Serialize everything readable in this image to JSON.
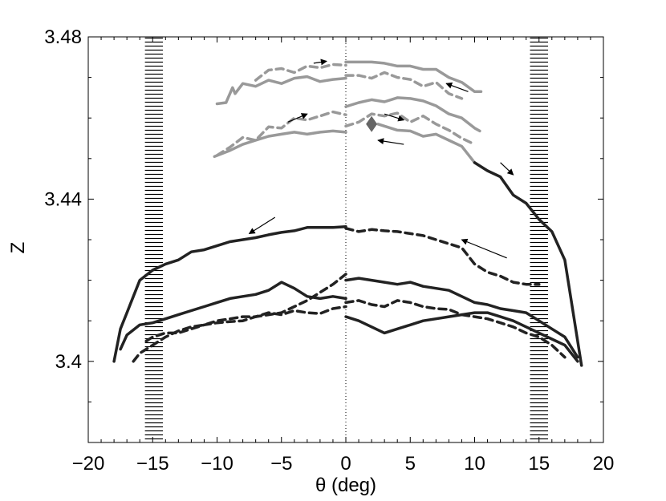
{
  "chart_data": {
    "type": "line",
    "title": "",
    "xlabel": "θ (deg)",
    "ylabel": "Z",
    "xlim": [
      -20,
      20
    ],
    "ylim": [
      3.38,
      3.48
    ],
    "xticks": [
      -20,
      -15,
      -10,
      -5,
      0,
      5,
      10,
      15,
      20
    ],
    "xtick_labels": [
      "−20",
      "−15",
      "−10",
      "−5",
      "0",
      "5",
      "10",
      "15",
      "20"
    ],
    "yticks": [
      3.4,
      3.44,
      3.48
    ],
    "ytick_labels": [
      "3.4",
      "3.44",
      "3.48"
    ],
    "grid": false,
    "legend": "none",
    "colors": {
      "black_series": "#222222",
      "gray_series": "#999999",
      "marker": "#666666",
      "hatch": "#000000"
    },
    "hatched_bands": [
      {
        "x": [
          -15.6,
          -14.2
        ]
      },
      {
        "x": [
          14.3,
          15.7
        ]
      }
    ],
    "center_line": {
      "x": 0,
      "style": "dotted"
    },
    "marker": {
      "shape": "diamond",
      "x": 2.0,
      "y": 3.4585
    },
    "series": [
      {
        "color": "gray",
        "style": "solid",
        "x": [
          -10,
          -9.3,
          -8.8,
          -8.6,
          -8,
          -7,
          -6,
          -5,
          -4,
          -3,
          -2,
          -1,
          0
        ],
        "y": [
          3.4635,
          3.4638,
          3.4675,
          3.466,
          3.4685,
          3.4678,
          3.4693,
          3.4685,
          3.4698,
          3.4702,
          3.469,
          3.4695,
          3.4698
        ]
      },
      {
        "color": "gray",
        "style": "dashed",
        "x": [
          -7,
          -6,
          -5,
          -4,
          -3,
          -2,
          -1,
          0
        ],
        "y": [
          3.4693,
          3.4718,
          3.4722,
          3.4712,
          3.4728,
          3.4724,
          3.4732,
          3.473
        ]
      },
      {
        "color": "gray",
        "style": "solid",
        "x": [
          0,
          1,
          2,
          3,
          4,
          5,
          6,
          7,
          8,
          9,
          10,
          10.5
        ],
        "y": [
          3.4738,
          3.4738,
          3.4738,
          3.4735,
          3.4728,
          3.4728,
          3.472,
          3.472,
          3.47,
          3.4688,
          3.4665,
          3.4665
        ]
      },
      {
        "color": "gray",
        "style": "dashed",
        "x": [
          0,
          1,
          2,
          3,
          4,
          5,
          6,
          7,
          8,
          9
        ],
        "y": [
          3.4705,
          3.4705,
          3.4698,
          3.4712,
          3.47,
          3.4695,
          3.4678,
          3.4688,
          3.466,
          3.4648
        ]
      },
      {
        "color": "gray",
        "style": "solid",
        "x": [
          -10.2,
          -9,
          -8,
          -7,
          -6,
          -5,
          -4,
          -3,
          -2,
          -1,
          0
        ],
        "y": [
          3.4505,
          3.452,
          3.4535,
          3.4545,
          3.4555,
          3.456,
          3.4565,
          3.456,
          3.4565,
          3.4568,
          3.4565
        ]
      },
      {
        "color": "gray",
        "style": "dashed",
        "x": [
          -10,
          -9,
          -8,
          -7,
          -6,
          -5,
          -4,
          -3,
          -2,
          -1,
          0
        ],
        "y": [
          3.4508,
          3.4528,
          3.4552,
          3.4545,
          3.4578,
          3.4575,
          3.46,
          3.4595,
          3.4605,
          3.4615,
          3.4608
        ]
      },
      {
        "color": "gray",
        "style": "solid",
        "x": [
          0,
          1,
          2,
          3,
          4,
          5,
          6,
          7,
          8,
          9,
          10,
          10.4
        ],
        "y": [
          3.4628,
          3.4638,
          3.4645,
          3.464,
          3.465,
          3.4648,
          3.4642,
          3.463,
          3.461,
          3.46,
          3.4575,
          3.4568
        ]
      },
      {
        "color": "gray",
        "style": "dashed",
        "x": [
          0,
          1,
          2,
          3,
          4,
          5,
          6,
          7,
          8,
          9,
          10
        ],
        "y": [
          3.458,
          3.459,
          3.461,
          3.4605,
          3.4612,
          3.459,
          3.4605,
          3.4585,
          3.457,
          3.455,
          3.4535
        ]
      },
      {
        "color": "gray",
        "style": "solid",
        "x": [
          2.5,
          4,
          5,
          6,
          7,
          8,
          9,
          10
        ],
        "y": [
          3.4585,
          3.457,
          3.4568,
          3.4555,
          3.456,
          3.4545,
          3.453,
          3.449
        ]
      },
      {
        "color": "black",
        "style": "solid",
        "x": [
          10,
          11,
          12,
          13,
          14,
          15,
          16,
          17,
          17.5,
          18,
          18.3
        ],
        "y": [
          3.449,
          3.447,
          3.4455,
          3.441,
          3.439,
          3.435,
          3.432,
          3.425,
          3.415,
          3.405,
          3.399
        ]
      },
      {
        "color": "black",
        "style": "solid",
        "x": [
          -18,
          -17.5,
          -17,
          -16.5,
          -16,
          -15,
          -14,
          -13,
          -12,
          -11,
          -10,
          -9,
          -8,
          -7,
          -6,
          -5,
          -4,
          -3,
          -2,
          -1,
          0
        ],
        "y": [
          3.4,
          3.408,
          3.412,
          3.416,
          3.42,
          3.4225,
          3.424,
          3.425,
          3.427,
          3.4275,
          3.4285,
          3.4295,
          3.43,
          3.4305,
          3.4312,
          3.4318,
          3.4322,
          3.433,
          3.433,
          3.433,
          3.4332
        ]
      },
      {
        "color": "black",
        "style": "dashed",
        "x": [
          0,
          1,
          2,
          3,
          4,
          5,
          6,
          7,
          8,
          9,
          10,
          11,
          12,
          13,
          14,
          15
        ],
        "y": [
          3.4328,
          3.432,
          3.4325,
          3.4322,
          3.432,
          3.4315,
          3.431,
          3.43,
          3.429,
          3.428,
          3.424,
          3.422,
          3.421,
          3.4195,
          3.419,
          3.419
        ]
      },
      {
        "color": "black",
        "style": "solid",
        "x": [
          -17.5,
          -17,
          -16,
          -15,
          -14,
          -13,
          -12,
          -11,
          -10,
          -9,
          -8,
          -7,
          -6,
          -5,
          -4,
          -3,
          -2,
          -1,
          0
        ],
        "y": [
          3.403,
          3.4065,
          3.409,
          3.4095,
          3.4105,
          3.4115,
          3.4125,
          3.4135,
          3.4145,
          3.4155,
          3.416,
          3.4165,
          3.4175,
          3.4195,
          3.418,
          3.416,
          3.4155,
          3.416,
          3.4155
        ]
      },
      {
        "color": "black",
        "style": "dashed",
        "x": [
          -16.5,
          -16,
          -15,
          -14,
          -13,
          -12,
          -11,
          -10,
          -9,
          -8,
          -7,
          -6,
          -5,
          -4,
          -3,
          -2,
          -1,
          0
        ],
        "y": [
          3.4,
          3.402,
          3.404,
          3.406,
          3.4075,
          3.4085,
          3.409,
          3.41,
          3.4105,
          3.411,
          3.411,
          3.4115,
          3.412,
          3.4135,
          3.415,
          3.417,
          3.419,
          3.4215
        ]
      },
      {
        "color": "black",
        "style": "dashed",
        "x": [
          -15.5,
          -15,
          -14,
          -13,
          -12,
          -11,
          -10,
          -9,
          -8,
          -7,
          -6,
          -5,
          -4,
          -3,
          -2,
          -1,
          0
        ],
        "y": [
          3.405,
          3.406,
          3.407,
          3.407,
          3.408,
          3.409,
          3.4095,
          3.4098,
          3.41,
          3.411,
          3.412,
          3.4115,
          3.4125,
          3.412,
          3.4118,
          3.413,
          3.4135
        ]
      },
      {
        "color": "black",
        "style": "solid",
        "x": [
          0,
          1,
          2,
          3,
          4,
          5,
          6,
          7,
          8,
          9,
          10,
          11,
          12,
          13,
          14,
          15,
          16,
          17,
          18
        ],
        "y": [
          3.42,
          3.4205,
          3.42,
          3.4195,
          3.419,
          3.4195,
          3.4185,
          3.418,
          3.4175,
          3.416,
          3.4145,
          3.414,
          3.413,
          3.4125,
          3.412,
          3.41,
          3.408,
          3.406,
          3.401
        ]
      },
      {
        "color": "black",
        "style": "solid",
        "x": [
          0,
          1,
          2,
          3,
          4,
          5,
          6,
          7,
          8,
          9,
          10,
          11,
          12,
          13,
          14,
          15,
          16,
          17,
          18
        ],
        "y": [
          3.411,
          3.41,
          3.4085,
          3.407,
          3.408,
          3.409,
          3.41,
          3.4105,
          3.411,
          3.4115,
          3.412,
          3.412,
          3.411,
          3.41,
          3.4085,
          3.407,
          3.4055,
          3.404,
          3.4
        ]
      },
      {
        "color": "black",
        "style": "dashed",
        "x": [
          0,
          1,
          2,
          3,
          4,
          5,
          6,
          7,
          8,
          9,
          10,
          11,
          12,
          13,
          14,
          15,
          16,
          17
        ],
        "y": [
          3.4145,
          3.415,
          3.414,
          3.4135,
          3.415,
          3.4145,
          3.4135,
          3.413,
          3.4128,
          3.4115,
          3.411,
          3.4105,
          3.4095,
          3.4085,
          3.407,
          3.406,
          3.404,
          3.401
        ]
      }
    ],
    "arrows": [
      {
        "from": [
          -2.5,
          3.4735
        ],
        "to": [
          -1.5,
          3.474
        ]
      },
      {
        "from": [
          9.5,
          3.4665
        ],
        "to": [
          7.8,
          3.4685
        ]
      },
      {
        "from": [
          -4.5,
          3.459
        ],
        "to": [
          -3.0,
          3.461
        ]
      },
      {
        "from": [
          3.0,
          3.461
        ],
        "to": [
          4.5,
          3.4595
        ]
      },
      {
        "from": [
          4.5,
          3.4535
        ],
        "to": [
          2.5,
          3.4545
        ]
      },
      {
        "from": [
          12.0,
          3.449
        ],
        "to": [
          13.0,
          3.446
        ]
      },
      {
        "from": [
          -5.5,
          3.4355
        ],
        "to": [
          -7.5,
          3.4315
        ]
      },
      {
        "from": [
          12.5,
          3.4255
        ],
        "to": [
          9.0,
          3.43
        ]
      }
    ]
  }
}
